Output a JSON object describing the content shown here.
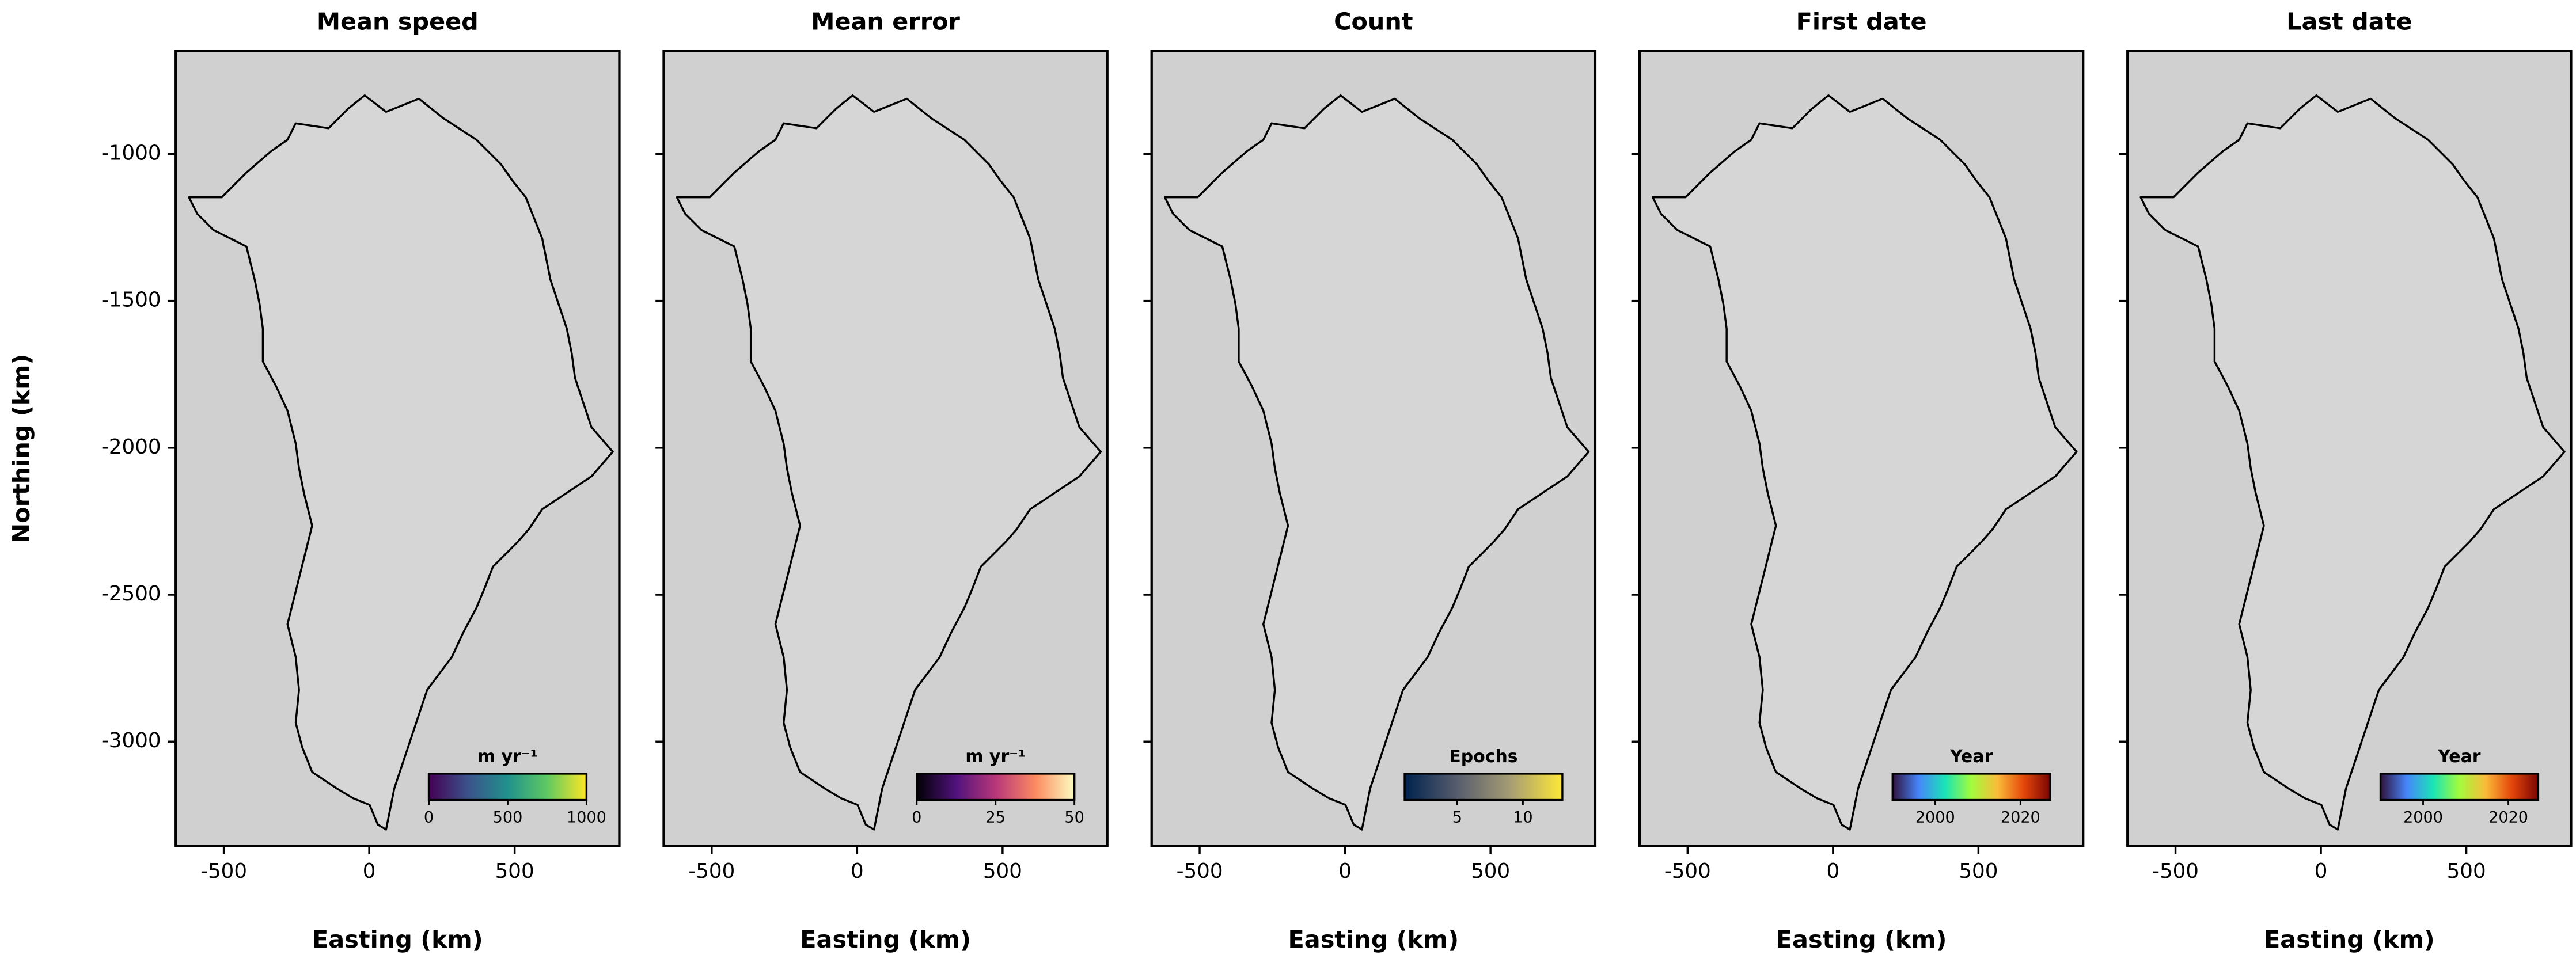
{
  "chart_data": [
    {
      "type": "map",
      "title": "Mean speed",
      "xlabel": "Easting (km)",
      "ylabel": "Northing (km)",
      "xlim": [
        -665,
        860
      ],
      "xticks": [
        -500,
        0,
        500
      ],
      "ylim": [
        -3355,
        -650
      ],
      "yticks": [
        -1000,
        -1500,
        -2000,
        -2500,
        -3000
      ],
      "colorbar": {
        "label": "m yr⁻¹",
        "lim": [
          0,
          1000
        ],
        "ticks": [
          0,
          500,
          1000
        ],
        "colors": [
          "#440154",
          "#3b528b",
          "#21918c",
          "#5ec962",
          "#fde725"
        ]
      }
    },
    {
      "type": "map",
      "title": "Mean error",
      "xlabel": "Easting (km)",
      "xlim": [
        -665,
        860
      ],
      "xticks": [
        -500,
        0,
        500
      ],
      "ylim": [
        -3355,
        -650
      ],
      "colorbar": {
        "label": "m yr⁻¹",
        "lim": [
          0,
          50
        ],
        "ticks": [
          0,
          25,
          50
        ],
        "colors": [
          "#000004",
          "#51127c",
          "#b73779",
          "#fc8961",
          "#fcfdbf"
        ]
      }
    },
    {
      "type": "map",
      "title": "Count",
      "xlabel": "Easting (km)",
      "xlim": [
        -665,
        860
      ],
      "xticks": [
        -500,
        0,
        500
      ],
      "ylim": [
        -3355,
        -650
      ],
      "colorbar": {
        "label": "Epochs",
        "lim": [
          1,
          13
        ],
        "ticks": [
          5,
          10
        ],
        "colors": [
          "#00224e",
          "#575d6d",
          "#a59c74",
          "#fee838"
        ]
      }
    },
    {
      "type": "map",
      "title": "First date",
      "xlabel": "Easting (km)",
      "xlim": [
        -665,
        860
      ],
      "xticks": [
        -500,
        0,
        500
      ],
      "ylim": [
        -3355,
        -650
      ],
      "colorbar": {
        "label": "Year",
        "lim": [
          1990,
          2027
        ],
        "ticks": [
          2000,
          2020
        ],
        "colors": [
          "#30123b",
          "#4686fb",
          "#1ae4b6",
          "#a2fc3c",
          "#fabb39",
          "#e4460a",
          "#7a0403"
        ]
      }
    },
    {
      "type": "map",
      "title": "Last date",
      "xlabel": "Easting (km)",
      "xlim": [
        -665,
        860
      ],
      "xticks": [
        -500,
        0,
        500
      ],
      "ylim": [
        -3355,
        -650
      ],
      "colorbar": {
        "label": "Year",
        "lim": [
          1990,
          2027
        ],
        "ticks": [
          2000,
          2020
        ],
        "colors": [
          "#30123b",
          "#4686fb",
          "#1ae4b6",
          "#a2fc3c",
          "#fabb39",
          "#e4460a",
          "#7a0403"
        ]
      }
    }
  ]
}
